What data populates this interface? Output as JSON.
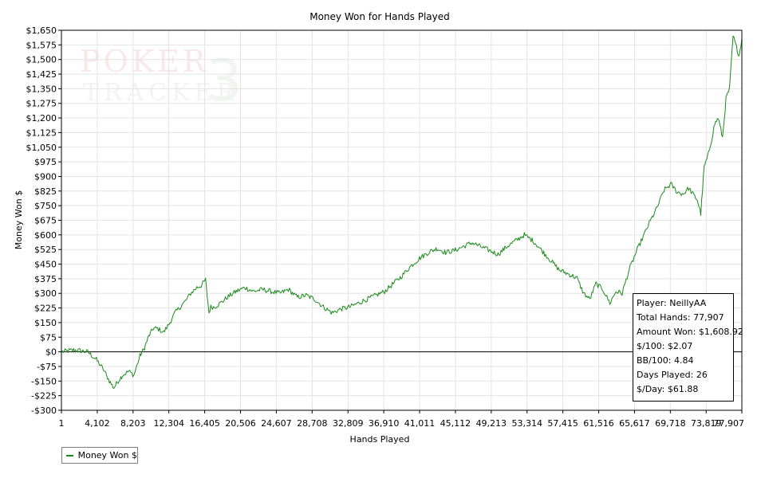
{
  "colors": {
    "series": "#1a8a1a",
    "zero_line": "#000000",
    "grid": "#e3e3e3"
  },
  "chart_data": {
    "type": "line",
    "title": "Money Won for Hands Played",
    "xlabel": "Hands Played",
    "ylabel": "Money Won $",
    "xlim": [
      1,
      77907
    ],
    "ylim": [
      -300,
      1650
    ],
    "xticks": [
      1,
      4102,
      8203,
      12304,
      16405,
      20506,
      24607,
      28708,
      32809,
      36910,
      41011,
      45112,
      49213,
      53314,
      57415,
      61516,
      65617,
      69718,
      73819,
      77907
    ],
    "xtick_labels": [
      "1",
      "4,102",
      "8,203",
      "12,304",
      "16,405",
      "20,506",
      "24,607",
      "28,708",
      "32,809",
      "36,910",
      "41,011",
      "45,112",
      "49,213",
      "53,314",
      "57,415",
      "61,516",
      "65,617",
      "69,718",
      "73,819",
      "77,907"
    ],
    "yticks": [
      -300,
      -225,
      -150,
      -75,
      0,
      75,
      150,
      225,
      300,
      375,
      450,
      525,
      600,
      675,
      750,
      825,
      900,
      975,
      1050,
      1125,
      1200,
      1275,
      1350,
      1425,
      1500,
      1575,
      1650
    ],
    "ytick_labels": [
      "-$300",
      "-$225",
      "-$150",
      "-$75",
      "$0",
      "$75",
      "$150",
      "$225",
      "$300",
      "$375",
      "$450",
      "$525",
      "$600",
      "$675",
      "$750",
      "$825",
      "$900",
      "$975",
      "$1,050",
      "$1,125",
      "$1,200",
      "$1,275",
      "$1,350",
      "$1,425",
      "$1,500",
      "$1,575",
      "$1,650"
    ],
    "grid": true,
    "legend_position": "bottom-left",
    "series": [
      {
        "name": "Money Won $",
        "x": [
          1,
          1500,
          3000,
          4000,
          4800,
          5500,
          6000,
          6500,
          7000,
          7700,
          8300,
          9000,
          9500,
          10000,
          10500,
          11000,
          11700,
          12300,
          13000,
          13600,
          14200,
          14800,
          15500,
          16000,
          16500,
          16900,
          17100,
          17500,
          18200,
          19000,
          20000,
          21000,
          22000,
          23000,
          24000,
          25000,
          26000,
          27000,
          28000,
          29000,
          30000,
          31000,
          32000,
          33000,
          34000,
          35000,
          36000,
          37000,
          38000,
          39000,
          40000,
          41000,
          42000,
          43000,
          44000,
          45000,
          46000,
          47000,
          48000,
          49000,
          50000,
          51000,
          52000,
          53000,
          54000,
          55000,
          56000,
          57000,
          58000,
          59000,
          59800,
          60500,
          61200,
          62000,
          62800,
          63500,
          64200,
          65000,
          65800,
          66500,
          67300,
          68200,
          69000,
          69800,
          70500,
          71200,
          71800,
          72300,
          72800,
          73200,
          73600,
          74000,
          74400,
          74800,
          75200,
          75700,
          76100,
          76500,
          76900,
          77300,
          77600,
          77907
        ],
        "values": [
          0,
          10,
          0,
          -40,
          -90,
          -150,
          -185,
          -150,
          -120,
          -100,
          -120,
          -20,
          20,
          80,
          120,
          120,
          100,
          140,
          200,
          230,
          260,
          300,
          330,
          340,
          370,
          200,
          230,
          230,
          250,
          280,
          310,
          330,
          310,
          320,
          310,
          300,
          320,
          280,
          290,
          270,
          230,
          200,
          220,
          230,
          250,
          270,
          290,
          310,
          350,
          390,
          440,
          480,
          510,
          530,
          510,
          520,
          540,
          560,
          540,
          520,
          500,
          540,
          570,
          600,
          570,
          520,
          470,
          420,
          400,
          380,
          300,
          270,
          350,
          320,
          250,
          310,
          300,
          420,
          510,
          580,
          660,
          740,
          830,
          860,
          820,
          810,
          840,
          810,
          780,
          710,
          950,
          1000,
          1080,
          1170,
          1200,
          1100,
          1300,
          1350,
          1620,
          1560,
          1520,
          1608.92
        ]
      }
    ]
  },
  "legend": {
    "label": "Money Won $"
  },
  "info": {
    "player": "Player: NeillyAA",
    "total_hands": "Total Hands: 77,907",
    "amount_won": "Amount Won: $1,608.92",
    "per_100": "$/100: $2.07",
    "bb_100": "BB/100: 4.84",
    "days_played": "Days Played: 26",
    "per_day": "$/Day: $61.88"
  },
  "watermark": {
    "line1": "POKER",
    "line2": "TRACKER",
    "mark": "3"
  }
}
